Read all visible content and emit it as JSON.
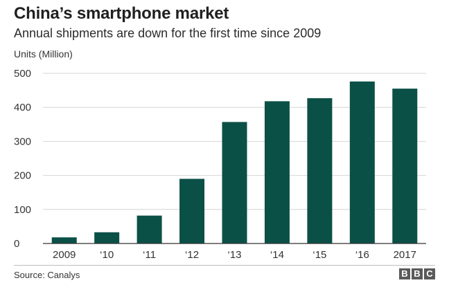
{
  "header": {
    "title": "China’s smartphone market",
    "subtitle": "Annual shipments are down for the first time since 2009"
  },
  "chart_data": {
    "type": "bar",
    "title": "China’s smartphone market",
    "subtitle": "Annual shipments are down for the first time since 2009",
    "xlabel": "",
    "ylabel": "Units (Million)",
    "categories": [
      "2009",
      "‘10",
      "‘11",
      "‘12",
      "‘13",
      "‘14",
      "‘15",
      "‘16",
      "2017"
    ],
    "values": [
      18,
      33,
      82,
      190,
      357,
      418,
      427,
      476,
      455
    ],
    "ylim": [
      0,
      500
    ],
    "yticks": [
      0,
      100,
      200,
      300,
      400,
      500
    ],
    "grid": true,
    "legend": "none",
    "bar_color": "#0b5047",
    "grid_color": "#d4d4d4",
    "axis_color": "#333333"
  },
  "footer": {
    "source": "Source: Canalys",
    "logo_letters": [
      "B",
      "B",
      "C"
    ]
  }
}
